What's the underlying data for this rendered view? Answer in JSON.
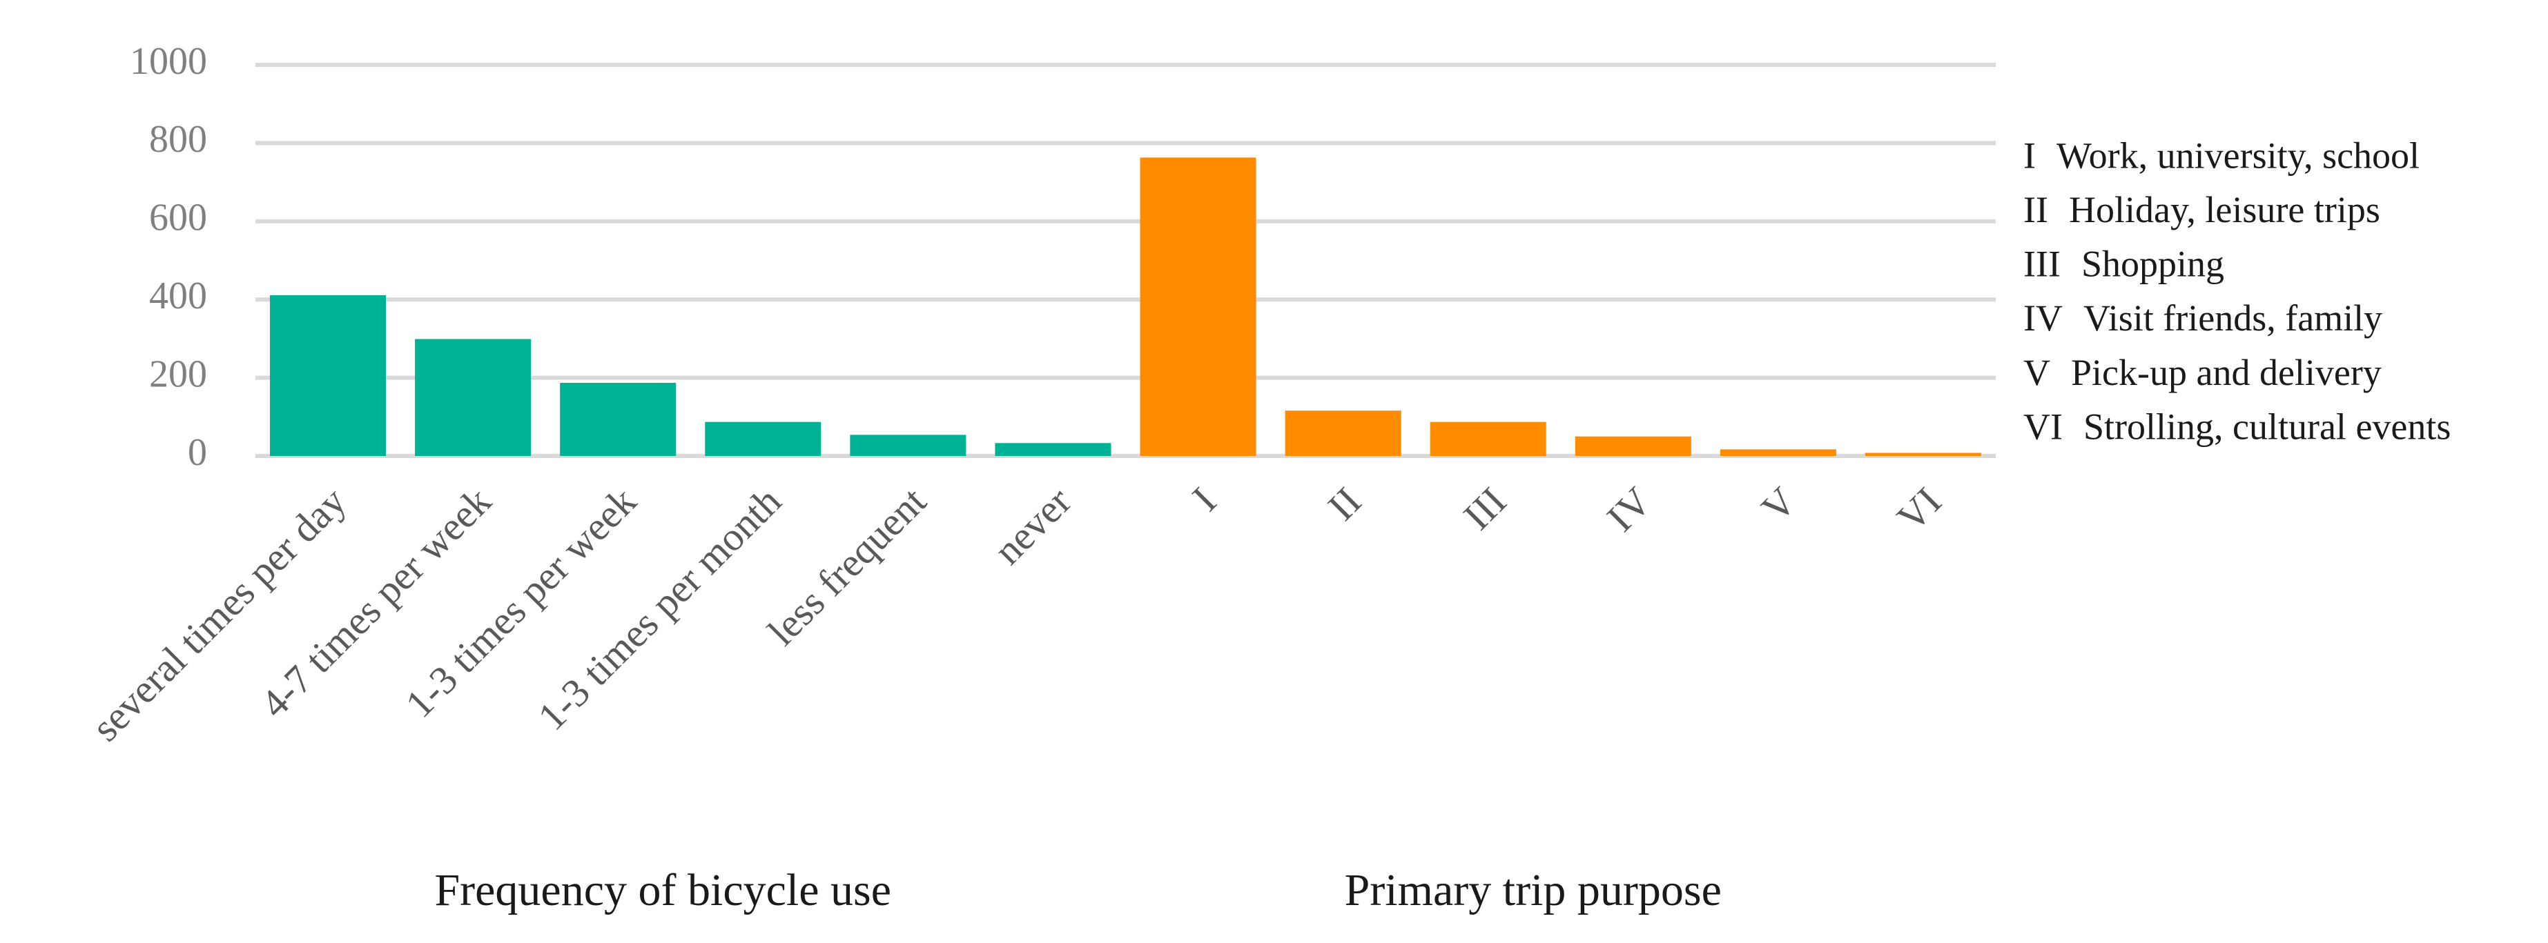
{
  "chart_data": {
    "type": "bar",
    "ylim": [
      0,
      1000
    ],
    "yticks": [
      0,
      200,
      400,
      600,
      800,
      1000
    ],
    "grid": true,
    "groups": [
      {
        "label": "Frequency of bicycle use",
        "color": "#00b294",
        "categories": [
          "several times per day",
          "4-7 times per week",
          "1-3 times per week",
          "1-3 times per month",
          "less frequent",
          "never"
        ],
        "values": [
          411,
          299,
          187,
          87,
          54,
          33
        ]
      },
      {
        "label": "Primary trip purpose",
        "color": "#ff8c00",
        "categories": [
          "I",
          "II",
          "III",
          "IV",
          "V",
          "VI"
        ],
        "values": [
          763,
          116,
          87,
          50,
          17,
          8
        ]
      }
    ],
    "key": [
      {
        "code": "I",
        "text": "Work, university, school"
      },
      {
        "code": "II",
        "text": "Holiday, leisure trips"
      },
      {
        "code": "III",
        "text": "Shopping"
      },
      {
        "code": "IV",
        "text": "Visit friends, family"
      },
      {
        "code": "V",
        "text": "Pick-up and delivery"
      },
      {
        "code": "VI",
        "text": "Strolling, cultural events"
      }
    ]
  }
}
